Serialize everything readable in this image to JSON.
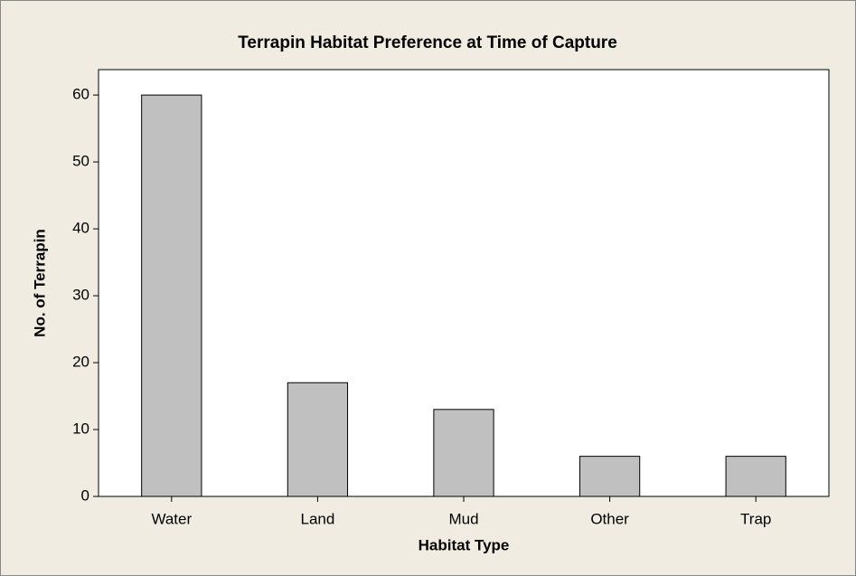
{
  "chart_data": {
    "type": "bar",
    "title": "Terrapin Habitat Preference at Time of Capture",
    "x_label": "Habitat Type",
    "y_label": "No. of Terrapin",
    "categories": [
      "Water",
      "Land",
      "Mud",
      "Other",
      "Trap"
    ],
    "values": [
      60,
      17,
      13,
      6,
      6
    ],
    "color": "#c0c0c0",
    "ylim": [
      0,
      63.8
    ],
    "yticks": [
      0,
      10,
      20,
      30,
      40,
      50,
      60
    ],
    "grid": false
  }
}
